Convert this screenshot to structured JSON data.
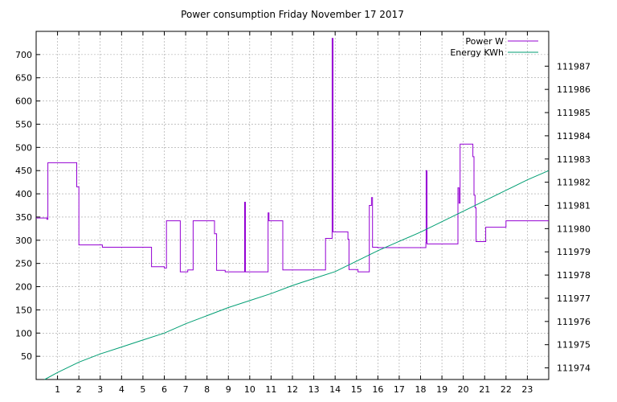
{
  "chart_data": {
    "type": "line",
    "title": "Power consumption Friday November 17 2017",
    "xlabel": "",
    "xlim": [
      0,
      24
    ],
    "x_ticks": [
      1,
      2,
      3,
      4,
      5,
      6,
      7,
      8,
      9,
      10,
      11,
      12,
      13,
      14,
      15,
      16,
      17,
      18,
      19,
      20,
      21,
      22,
      23
    ],
    "y_left": {
      "label": "",
      "lim": [
        0,
        750
      ],
      "ticks": [
        50,
        100,
        150,
        200,
        250,
        300,
        350,
        400,
        450,
        500,
        550,
        600,
        650,
        700
      ]
    },
    "y_right": {
      "label": "",
      "lim": [
        111973.5,
        111988.5
      ],
      "ticks": [
        111974,
        111975,
        111976,
        111977,
        111978,
        111979,
        111980,
        111981,
        111982,
        111983,
        111984,
        111985,
        111986,
        111987
      ]
    },
    "grid": true,
    "legend_position": "top-right",
    "series": [
      {
        "name": "Power W",
        "axis": "left",
        "color": "#9400d3",
        "step": true,
        "x": [
          0.0,
          0.5,
          0.55,
          1.55,
          1.9,
          1.95,
          2.0,
          2.0,
          3.05,
          3.1,
          5.2,
          5.4,
          5.95,
          6.0,
          6.1,
          6.7,
          6.75,
          7.05,
          7.1,
          7.35,
          8.3,
          8.35,
          8.45,
          8.85,
          9.75,
          9.76,
          9.8,
          9.82,
          10.85,
          10.86,
          10.9,
          11.5,
          11.55,
          13.25,
          13.55,
          13.85,
          13.86,
          13.9,
          14.0,
          14.6,
          14.65,
          15.05,
          15.07,
          15.6,
          15.62,
          15.7,
          15.75,
          15.9,
          16.0,
          17.8,
          18.25,
          18.26,
          18.3,
          19.45,
          19.75,
          19.8,
          19.85,
          20.4,
          20.45,
          20.5,
          20.55,
          20.6,
          21.05,
          21.9,
          22.0,
          24.0
        ],
        "y": [
          348,
          345,
          467,
          467,
          415,
          415,
          365,
          290,
          290,
          285,
          285,
          243,
          243,
          240,
          342,
          342,
          232,
          232,
          236,
          342,
          342,
          314,
          235,
          232,
          232,
          382,
          232,
          232,
          232,
          359,
          342,
          342,
          236,
          236,
          304,
          304,
          735,
          318,
          318,
          302,
          237,
          237,
          232,
          375,
          375,
          392,
          285,
          285,
          284,
          284,
          295,
          450,
          292,
          292,
          413,
          380,
          507,
          507,
          480,
          397,
          370,
          297,
          328,
          328,
          342,
          342
        ]
      },
      {
        "name": "Energy KWh",
        "axis": "right",
        "color": "#009e73",
        "step": false,
        "x": [
          0.4,
          1.0,
          2.0,
          3.0,
          4.0,
          5.0,
          6.0,
          7.0,
          8.0,
          9.0,
          10.0,
          11.0,
          12.0,
          13.0,
          14.0,
          15.0,
          16.0,
          17.0,
          18.0,
          19.0,
          20.0,
          21.0,
          22.0,
          23.0,
          24.0
        ],
        "y": [
          111973.5,
          111973.8,
          111974.25,
          111974.6,
          111974.9,
          111975.2,
          111975.5,
          111975.9,
          111976.25,
          111976.6,
          111976.9,
          111977.2,
          111977.55,
          111977.85,
          111978.15,
          111978.6,
          111979.05,
          111979.45,
          111979.85,
          111980.3,
          111980.75,
          111981.2,
          111981.65,
          111982.1,
          111982.5
        ]
      }
    ]
  }
}
